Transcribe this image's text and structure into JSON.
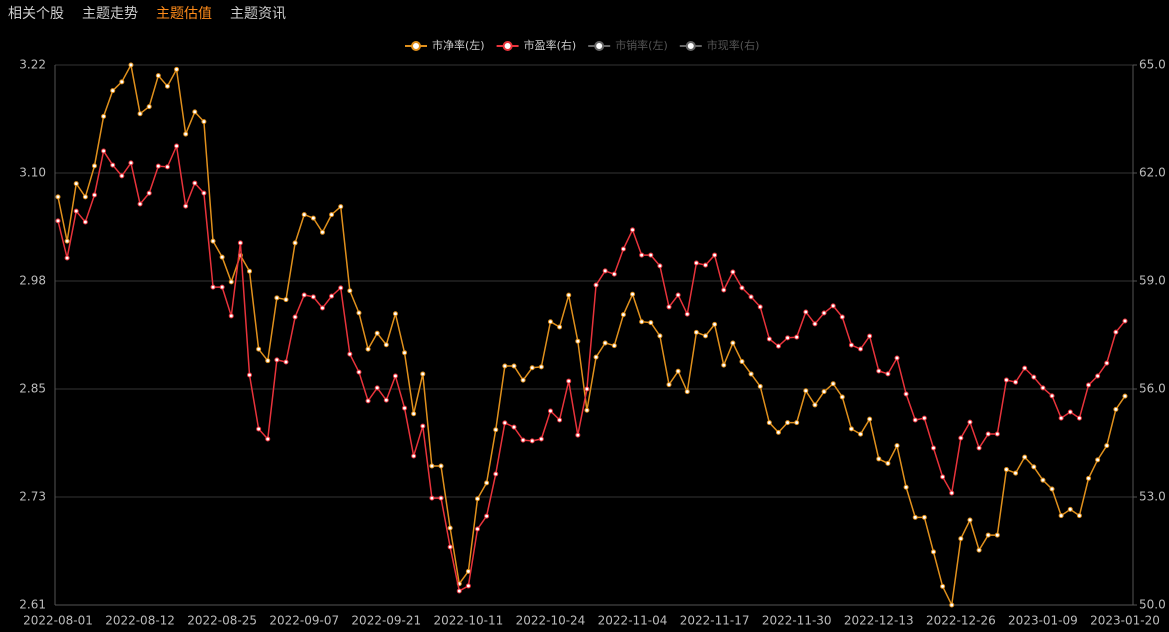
{
  "tabs": [
    "相关个股",
    "主题走势",
    "主题估值",
    "主题资讯"
  ],
  "active_tab": 2,
  "chart_data": {
    "type": "line",
    "categories": [
      "2022-08-01",
      null,
      null,
      null,
      null,
      null,
      null,
      null,
      null,
      "2022-08-12",
      null,
      null,
      null,
      null,
      null,
      null,
      null,
      null,
      "2022-08-25",
      null,
      null,
      null,
      null,
      null,
      null,
      null,
      null,
      "2022-09-07",
      null,
      null,
      null,
      null,
      null,
      null,
      null,
      null,
      "2022-09-21",
      null,
      null,
      null,
      null,
      null,
      null,
      null,
      null,
      "2022-10-11",
      null,
      null,
      null,
      null,
      null,
      null,
      null,
      null,
      "2022-10-24",
      null,
      null,
      null,
      null,
      null,
      null,
      null,
      null,
      "2022-11-04",
      null,
      null,
      null,
      null,
      null,
      null,
      null,
      null,
      "2022-11-17",
      null,
      null,
      null,
      null,
      null,
      null,
      null,
      null,
      "2022-11-30",
      null,
      null,
      null,
      null,
      null,
      null,
      null,
      null,
      "2022-12-13",
      null,
      null,
      null,
      null,
      null,
      null,
      null,
      null,
      "2022-12-26",
      null,
      null,
      null,
      null,
      null,
      null,
      null,
      null,
      "2023-01-09",
      null,
      null,
      null,
      null,
      null,
      null,
      null,
      null,
      "2023-01-20"
    ],
    "series": [
      {
        "name": "市净率(左)",
        "color": "#e0901c",
        "values": [
          3.071,
          3.021,
          3.086,
          3.071,
          3.106,
          3.162,
          3.191,
          3.201,
          3.22,
          3.165,
          3.173,
          3.208,
          3.196,
          3.215,
          3.142,
          3.167,
          3.156,
          3.021,
          3.003,
          2.975,
          3.005,
          2.987,
          2.899,
          2.886,
          2.957,
          2.955,
          3.019,
          3.051,
          3.047,
          3.031,
          3.051,
          3.06,
          2.965,
          2.94,
          2.899,
          2.917,
          2.904,
          2.939,
          2.895,
          2.826,
          2.871,
          2.767,
          2.767,
          2.697,
          2.634,
          2.648,
          2.73,
          2.748,
          2.808,
          2.88,
          2.88,
          2.864,
          2.878,
          2.879,
          2.93,
          2.924,
          2.96,
          2.908,
          2.83,
          2.89,
          2.906,
          2.903,
          2.938,
          2.961,
          2.93,
          2.929,
          2.914,
          2.859,
          2.874,
          2.851,
          2.918,
          2.914,
          2.927,
          2.881,
          2.906,
          2.885,
          2.871,
          2.857,
          2.816,
          2.805,
          2.816,
          2.816,
          2.852,
          2.836,
          2.851,
          2.86,
          2.845,
          2.809,
          2.803,
          2.82,
          2.775,
          2.77,
          2.79,
          2.743,
          2.709,
          2.709,
          2.67,
          2.631,
          2.61,
          2.685,
          2.706,
          2.672,
          2.689,
          2.689,
          2.763,
          2.759,
          2.777,
          2.766,
          2.751,
          2.741,
          2.711,
          2.718,
          2.711,
          2.753,
          2.774,
          2.79,
          2.831,
          2.846
        ]
      },
      {
        "name": "市盈率(右)",
        "color": "#e8333b",
        "axis": "y2",
        "values": [
          60.67,
          59.64,
          60.94,
          60.64,
          61.39,
          62.61,
          62.22,
          61.92,
          62.28,
          61.14,
          61.44,
          62.19,
          62.17,
          62.75,
          61.08,
          61.72,
          61.44,
          58.83,
          58.83,
          58.03,
          60.06,
          56.39,
          54.89,
          54.61,
          56.81,
          56.75,
          58.0,
          58.61,
          58.56,
          58.25,
          58.58,
          58.81,
          56.97,
          56.47,
          55.67,
          56.03,
          55.69,
          56.36,
          55.47,
          54.14,
          54.97,
          52.97,
          52.97,
          51.61,
          50.39,
          50.53,
          52.11,
          52.47,
          53.64,
          55.06,
          54.94,
          54.58,
          54.56,
          54.61,
          55.39,
          55.14,
          56.22,
          54.72,
          56.0,
          58.89,
          59.28,
          59.19,
          59.89,
          60.42,
          59.72,
          59.72,
          59.42,
          58.28,
          58.61,
          58.08,
          59.5,
          59.44,
          59.72,
          58.75,
          59.25,
          58.81,
          58.56,
          58.28,
          57.39,
          57.19,
          57.42,
          57.44,
          58.14,
          57.81,
          58.11,
          58.31,
          58.0,
          57.22,
          57.11,
          57.47,
          56.5,
          56.42,
          56.86,
          55.86,
          55.14,
          55.19,
          54.36,
          53.56,
          53.11,
          54.64,
          55.08,
          54.36,
          54.75,
          54.75,
          56.25,
          56.19,
          56.58,
          56.33,
          56.03,
          55.81,
          55.19,
          55.36,
          55.19,
          56.11,
          56.36,
          56.72,
          57.58,
          57.89
        ]
      }
    ],
    "hidden_series": [
      {
        "name": "市销率(左)"
      },
      {
        "name": "市现率(右)"
      }
    ],
    "ylim": [
      2.61,
      3.22
    ],
    "yticks": [
      2.61,
      {
        "value": 2.732,
        "label": "2.73"
      },
      {
        "value": 2.854,
        "label": "2.85"
      },
      {
        "value": 2.976,
        "label": "2.98"
      },
      {
        "value": 3.098,
        "label": "3.10"
      },
      3.22
    ],
    "y2lim": [
      50,
      65
    ],
    "y2ticks": [
      {
        "value": 50,
        "label": "50.0"
      },
      {
        "value": 53,
        "label": "53.0"
      },
      {
        "value": 56,
        "label": "56.0"
      },
      {
        "value": 59,
        "label": "59.0"
      },
      {
        "value": 62,
        "label": "62.0"
      },
      {
        "value": 65,
        "label": "65.0"
      }
    ],
    "grid": true
  }
}
